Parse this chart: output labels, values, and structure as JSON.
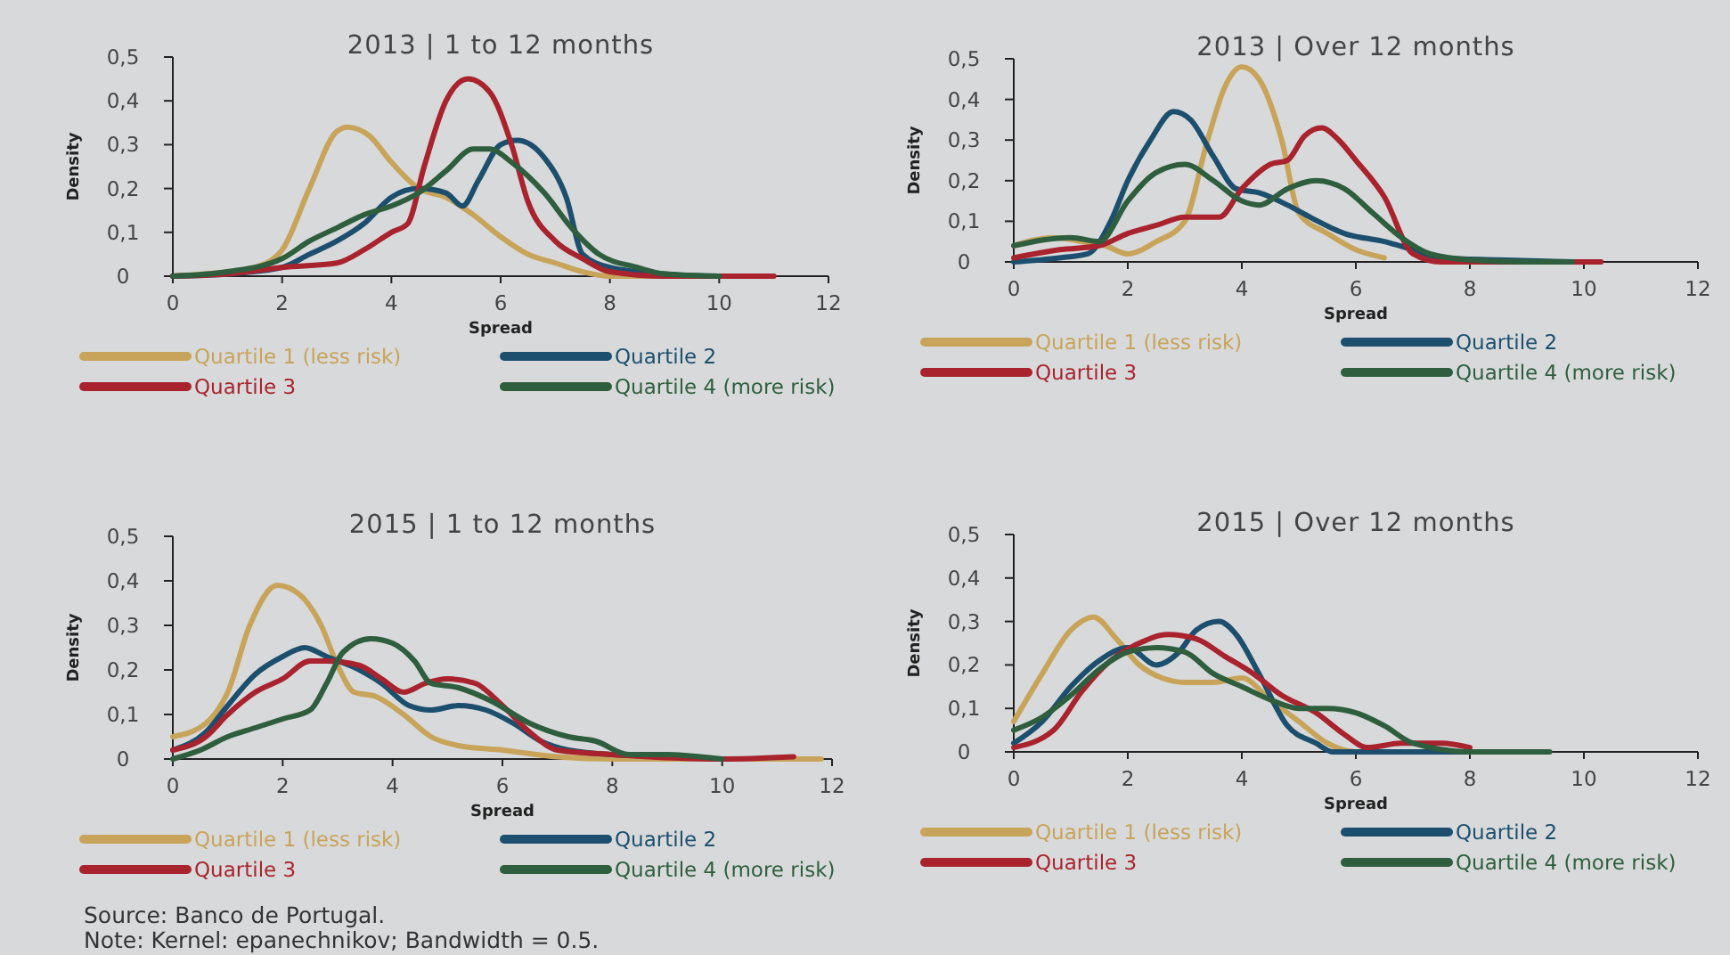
{
  "chart_data": [
    {
      "type": "line",
      "title": "2013 | 1 to 12 months",
      "xlabel": "Spread",
      "ylabel": "Density",
      "xlim": [
        0,
        12
      ],
      "ylim": [
        0,
        0.5
      ],
      "xticks": [
        0,
        2,
        4,
        6,
        8,
        10,
        12
      ],
      "yticks": [
        {
          "value": 0,
          "label": "0"
        },
        {
          "value": 0.1,
          "label": "0,1"
        },
        {
          "value": 0.2,
          "label": "0,2"
        },
        {
          "value": 0.3,
          "label": "0,3"
        },
        {
          "value": 0.4,
          "label": "0,4"
        },
        {
          "value": 0.5,
          "label": "0,5"
        }
      ],
      "legend": "bottom",
      "series": [
        {
          "name": "Quartile 1 (less risk)",
          "color": "#c8a45a",
          "x": [
            0,
            1,
            1.5,
            2,
            2.5,
            3,
            3.2,
            3.6,
            4,
            4.5,
            5,
            5.5,
            6,
            6.5,
            7,
            7.5,
            8,
            9
          ],
          "values": [
            0,
            0.01,
            0.02,
            0.06,
            0.2,
            0.33,
            0.34,
            0.32,
            0.26,
            0.2,
            0.18,
            0.14,
            0.09,
            0.05,
            0.03,
            0.01,
            0,
            0
          ]
        },
        {
          "name": "Quartile 2",
          "color": "#1c4f6e",
          "x": [
            0,
            1,
            2,
            2.5,
            3,
            3.5,
            4,
            4.5,
            5,
            5.3,
            5.6,
            6,
            6.3,
            6.8,
            7.2,
            7.5,
            8,
            9,
            10,
            10.5
          ],
          "values": [
            0,
            0.005,
            0.02,
            0.05,
            0.08,
            0.12,
            0.18,
            0.2,
            0.19,
            0.16,
            0.22,
            0.3,
            0.31,
            0.27,
            0.18,
            0.05,
            0.02,
            0.005,
            0,
            0
          ]
        },
        {
          "name": "Quartile 3",
          "color": "#a8232e",
          "x": [
            0,
            1,
            2,
            3,
            3.5,
            4,
            4.3,
            4.6,
            5,
            5.4,
            5.8,
            6.2,
            6.5,
            7,
            7.5,
            8,
            9,
            11
          ],
          "values": [
            0,
            0.005,
            0.02,
            0.03,
            0.06,
            0.1,
            0.12,
            0.25,
            0.4,
            0.45,
            0.42,
            0.3,
            0.17,
            0.08,
            0.04,
            0.01,
            0,
            0
          ]
        },
        {
          "name": "Quartile 4 (more risk)",
          "color": "#2e5e3e",
          "x": [
            0,
            1,
            2,
            2.5,
            3,
            3.5,
            4,
            4.5,
            5,
            5.5,
            5.8,
            6.2,
            6.8,
            7.3,
            7.8,
            8.5,
            9,
            10
          ],
          "values": [
            0,
            0.01,
            0.04,
            0.08,
            0.11,
            0.14,
            0.16,
            0.19,
            0.24,
            0.29,
            0.29,
            0.26,
            0.19,
            0.11,
            0.05,
            0.02,
            0.005,
            0
          ]
        }
      ]
    },
    {
      "type": "line",
      "title": "2013 | Over 12 months",
      "xlabel": "Spread",
      "ylabel": "Density",
      "xlim": [
        0,
        12
      ],
      "ylim": [
        0,
        0.5
      ],
      "xticks": [
        0,
        2,
        4,
        6,
        8,
        10,
        12
      ],
      "yticks": [
        {
          "value": 0,
          "label": "0"
        },
        {
          "value": 0.1,
          "label": "0,1"
        },
        {
          "value": 0.2,
          "label": "0,2"
        },
        {
          "value": 0.3,
          "label": "0,3"
        },
        {
          "value": 0.4,
          "label": "0,4"
        },
        {
          "value": 0.5,
          "label": "0,5"
        }
      ],
      "legend": "bottom",
      "series": [
        {
          "name": "Quartile 1 (less risk)",
          "color": "#c8a45a",
          "x": [
            0,
            0.7,
            1.2,
            1.6,
            2,
            2.5,
            3,
            3.4,
            3.7,
            4,
            4.3,
            4.7,
            5,
            5.5,
            6,
            6.5
          ],
          "values": [
            0.04,
            0.06,
            0.05,
            0.04,
            0.02,
            0.05,
            0.1,
            0.3,
            0.43,
            0.48,
            0.45,
            0.3,
            0.12,
            0.07,
            0.03,
            0.01
          ]
        },
        {
          "name": "Quartile 2",
          "color": "#1c4f6e",
          "x": [
            0,
            0.8,
            1.3,
            1.7,
            2,
            2.4,
            2.8,
            3.1,
            3.5,
            3.9,
            4.3,
            4.8,
            5.2,
            5.8,
            6.5,
            7,
            7.5,
            8.5,
            9.8
          ],
          "values": [
            0,
            0.01,
            0.02,
            0.1,
            0.2,
            0.3,
            0.37,
            0.35,
            0.26,
            0.18,
            0.17,
            0.14,
            0.11,
            0.07,
            0.05,
            0.03,
            0.01,
            0.005,
            0
          ]
        },
        {
          "name": "Quartile 3",
          "color": "#a8232e",
          "x": [
            0,
            0.8,
            1.5,
            2,
            2.5,
            3,
            3.6,
            4,
            4.5,
            4.8,
            5.1,
            5.4,
            5.7,
            6,
            6.5,
            7,
            7.5,
            9,
            10.3
          ],
          "values": [
            0.01,
            0.03,
            0.04,
            0.07,
            0.09,
            0.11,
            0.11,
            0.18,
            0.24,
            0.25,
            0.31,
            0.33,
            0.3,
            0.25,
            0.16,
            0.02,
            0,
            0,
            0
          ]
        },
        {
          "name": "Quartile 4 (more risk)",
          "color": "#2e5e3e",
          "x": [
            0,
            1,
            1.5,
            2,
            2.5,
            3,
            3.5,
            4,
            4.3,
            4.8,
            5.3,
            5.8,
            6.3,
            6.8,
            7.3,
            8,
            9,
            9.8
          ],
          "values": [
            0.04,
            0.06,
            0.05,
            0.15,
            0.22,
            0.24,
            0.2,
            0.15,
            0.14,
            0.18,
            0.2,
            0.18,
            0.12,
            0.06,
            0.02,
            0.005,
            0,
            0
          ]
        }
      ]
    },
    {
      "type": "line",
      "title": "2015 | 1 to 12 months",
      "xlabel": "Spread",
      "ylabel": "Density",
      "xlim": [
        0,
        12
      ],
      "ylim": [
        0,
        0.5
      ],
      "xticks": [
        0,
        2,
        4,
        6,
        8,
        10,
        12
      ],
      "yticks": [
        {
          "value": 0,
          "label": "0"
        },
        {
          "value": 0.1,
          "label": "0,1"
        },
        {
          "value": 0.2,
          "label": "0,2"
        },
        {
          "value": 0.3,
          "label": "0,3"
        },
        {
          "value": 0.4,
          "label": "0,4"
        },
        {
          "value": 0.5,
          "label": "0,5"
        }
      ],
      "legend": "bottom",
      "annotations": [
        "Source: Banco de Portugal.",
        "Note: Kernel: epanechnikov; Bandwidth = 0.5."
      ],
      "series": [
        {
          "name": "Quartile 1 (less risk)",
          "color": "#c8a45a",
          "x": [
            0,
            0.6,
            1,
            1.4,
            1.9,
            2.3,
            2.7,
            3,
            3.3,
            3.7,
            4.2,
            4.7,
            5.2,
            6,
            7,
            8,
            10,
            11.8
          ],
          "values": [
            0.05,
            0.08,
            0.15,
            0.3,
            0.39,
            0.37,
            0.3,
            0.21,
            0.15,
            0.14,
            0.1,
            0.05,
            0.03,
            0.02,
            0.005,
            0,
            0,
            0
          ]
        },
        {
          "name": "Quartile 2",
          "color": "#1c4f6e",
          "x": [
            0,
            0.6,
            1,
            1.5,
            2,
            2.4,
            2.8,
            3.4,
            3.8,
            4.3,
            4.7,
            5.2,
            5.7,
            6.2,
            6.7,
            7.2,
            8,
            9.3
          ],
          "values": [
            0.02,
            0.06,
            0.12,
            0.19,
            0.23,
            0.25,
            0.23,
            0.2,
            0.17,
            0.12,
            0.11,
            0.12,
            0.11,
            0.08,
            0.04,
            0.02,
            0.01,
            0.005
          ]
        },
        {
          "name": "Quartile 3",
          "color": "#a8232e",
          "x": [
            0,
            0.6,
            1,
            1.5,
            2,
            2.5,
            2.8,
            3.4,
            3.8,
            4.2,
            4.6,
            5,
            5.5,
            6,
            6.5,
            7,
            8,
            10,
            11.3
          ],
          "values": [
            0.02,
            0.05,
            0.1,
            0.15,
            0.18,
            0.22,
            0.22,
            0.21,
            0.18,
            0.15,
            0.17,
            0.18,
            0.17,
            0.12,
            0.06,
            0.02,
            0.01,
            0,
            0.005
          ]
        },
        {
          "name": "Quartile 4 (more risk)",
          "color": "#2e5e3e",
          "x": [
            0,
            0.5,
            1,
            1.5,
            2,
            2.5,
            2.8,
            3.1,
            3.6,
            4,
            4.4,
            4.7,
            5.2,
            5.8,
            6.5,
            7.2,
            7.7,
            8.3,
            9,
            10
          ],
          "values": [
            0,
            0.02,
            0.05,
            0.07,
            0.09,
            0.11,
            0.17,
            0.24,
            0.27,
            0.26,
            0.22,
            0.17,
            0.16,
            0.13,
            0.08,
            0.05,
            0.04,
            0.01,
            0.01,
            0
          ]
        }
      ]
    },
    {
      "type": "line",
      "title": "2015 | Over 12 months",
      "xlabel": "Spread",
      "ylabel": "Density",
      "xlim": [
        0,
        12
      ],
      "ylim": [
        0,
        0.5
      ],
      "xticks": [
        0,
        2,
        4,
        6,
        8,
        10,
        12
      ],
      "yticks": [
        {
          "value": 0,
          "label": "0"
        },
        {
          "value": 0.1,
          "label": "0,1"
        },
        {
          "value": 0.2,
          "label": "0,2"
        },
        {
          "value": 0.3,
          "label": "0,3"
        },
        {
          "value": 0.4,
          "label": "0,4"
        },
        {
          "value": 0.5,
          "label": "0,5"
        }
      ],
      "legend": "bottom",
      "series": [
        {
          "name": "Quartile 1 (less risk)",
          "color": "#c8a45a",
          "x": [
            0,
            0.5,
            1,
            1.4,
            1.8,
            2.2,
            2.6,
            3,
            3.5,
            4,
            4.5,
            5,
            5.5,
            6,
            7
          ],
          "values": [
            0.07,
            0.18,
            0.28,
            0.31,
            0.26,
            0.2,
            0.17,
            0.16,
            0.16,
            0.17,
            0.12,
            0.07,
            0.02,
            0,
            0
          ]
        },
        {
          "name": "Quartile 2",
          "color": "#1c4f6e",
          "x": [
            0,
            0.5,
            1,
            1.5,
            2,
            2.5,
            2.9,
            3.2,
            3.6,
            3.9,
            4.3,
            4.8,
            5.3,
            5.6,
            7,
            8
          ],
          "values": [
            0.02,
            0.07,
            0.15,
            0.21,
            0.24,
            0.2,
            0.23,
            0.28,
            0.3,
            0.27,
            0.18,
            0.06,
            0.02,
            0,
            0,
            0
          ]
        },
        {
          "name": "Quartile 3",
          "color": "#a8232e",
          "x": [
            0,
            0.7,
            1.2,
            1.7,
            2.2,
            2.7,
            3.2,
            3.7,
            4.2,
            4.7,
            5.3,
            5.8,
            6.2,
            6.8,
            7.5,
            8
          ],
          "values": [
            0.01,
            0.05,
            0.14,
            0.21,
            0.25,
            0.27,
            0.26,
            0.22,
            0.18,
            0.13,
            0.09,
            0.04,
            0.01,
            0.02,
            0.02,
            0.01
          ]
        },
        {
          "name": "Quartile 4 (more risk)",
          "color": "#2e5e3e",
          "x": [
            0,
            0.5,
            1,
            1.5,
            2,
            2.5,
            3,
            3.5,
            4,
            4.5,
            5,
            5.5,
            6,
            6.5,
            7,
            8,
            9.4
          ],
          "values": [
            0.05,
            0.08,
            0.13,
            0.19,
            0.23,
            0.24,
            0.23,
            0.18,
            0.15,
            0.12,
            0.1,
            0.1,
            0.09,
            0.06,
            0.02,
            0,
            0
          ]
        }
      ]
    }
  ]
}
